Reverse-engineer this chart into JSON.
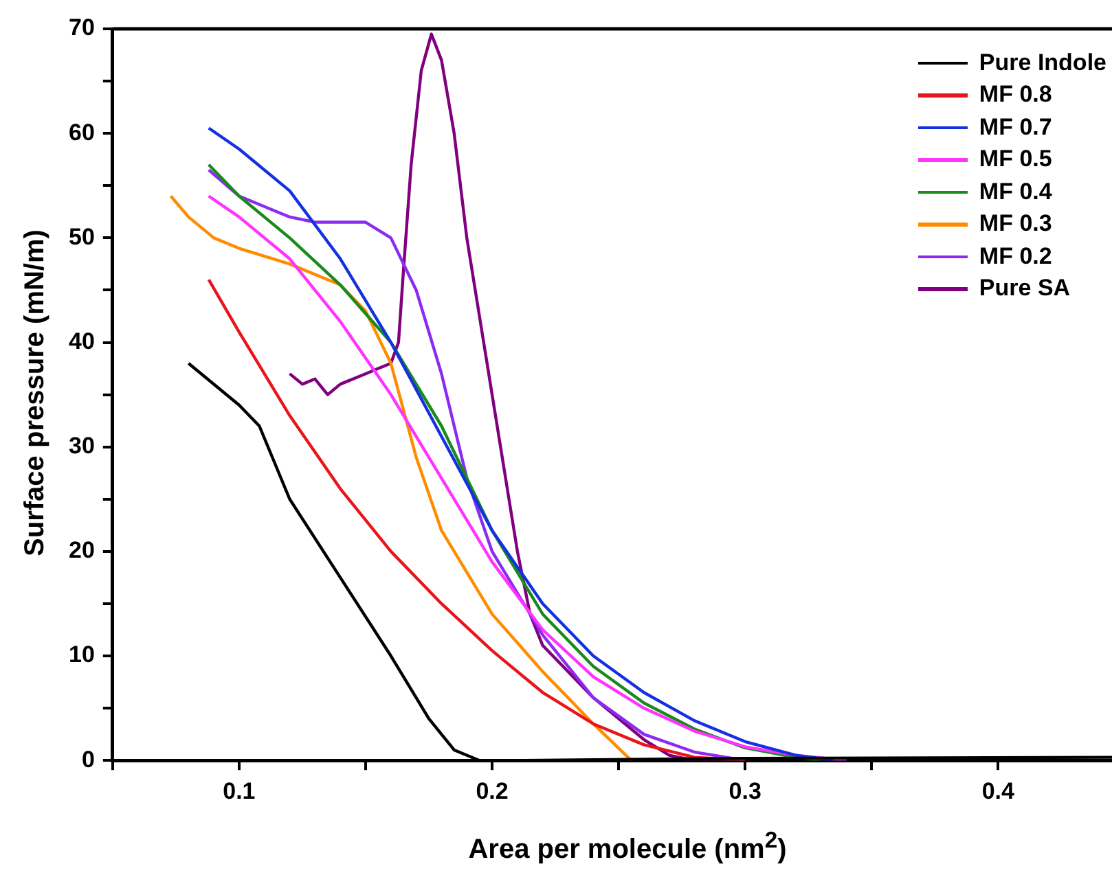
{
  "chart_data": {
    "type": "line",
    "xlabel": "Area per molecule (nm$^{2}$)",
    "ylabel": "Surface pressure (mN/m)",
    "xlim": [
      0.05,
      0.445
    ],
    "ylim": [
      0,
      70
    ],
    "xticks": [
      {
        "value": 0.05,
        "label": null
      },
      0.1,
      {
        "value": 0.15,
        "label": null
      },
      0.2,
      {
        "value": 0.25,
        "label": null
      },
      0.3,
      {
        "value": 0.35,
        "label": null
      },
      0.4
    ],
    "yticks": [
      0,
      {
        "value": 5,
        "label": null
      },
      10,
      {
        "value": 15,
        "label": null
      },
      20,
      {
        "value": 25,
        "label": null
      },
      30,
      {
        "value": 35,
        "label": null
      },
      40,
      {
        "value": 45,
        "label": null
      },
      50,
      {
        "value": 55,
        "label": null
      },
      60,
      {
        "value": 65,
        "label": null
      },
      70
    ],
    "grid": false,
    "legend": "top right",
    "marker": "none",
    "line_style": "solid",
    "series": [
      {
        "name": "Pure Indole",
        "color": "#000000",
        "x": [
          0.08,
          0.1,
          0.108,
          0.12,
          0.14,
          0.16,
          0.175,
          0.185,
          0.195,
          0.21,
          0.3,
          0.445
        ],
        "values": [
          38,
          34,
          32,
          25,
          17.5,
          10,
          4,
          1,
          0,
          0,
          0.2,
          0.3
        ]
      },
      {
        "name": "MF 0.8",
        "color": "#e8151b",
        "x": [
          0.088,
          0.1,
          0.12,
          0.14,
          0.16,
          0.18,
          0.2,
          0.22,
          0.24,
          0.26,
          0.28,
          0.3
        ],
        "values": [
          46,
          41,
          33,
          26,
          20,
          15,
          10.5,
          6.5,
          3.5,
          1.5,
          0.3,
          0
        ]
      },
      {
        "name": "MF 0.7",
        "color": "#1530e0",
        "x": [
          0.088,
          0.1,
          0.12,
          0.14,
          0.16,
          0.18,
          0.2,
          0.22,
          0.24,
          0.26,
          0.28,
          0.3,
          0.32,
          0.335
        ],
        "values": [
          60.5,
          58.5,
          54.5,
          48,
          40,
          31,
          22,
          15,
          10,
          6.5,
          3.8,
          1.8,
          0.5,
          0
        ]
      },
      {
        "name": "MF 0.5",
        "color": "#ff33ff",
        "x": [
          0.088,
          0.1,
          0.12,
          0.14,
          0.16,
          0.18,
          0.2,
          0.22,
          0.24,
          0.26,
          0.28,
          0.3,
          0.32,
          0.34
        ],
        "values": [
          54,
          52,
          48,
          42,
          35,
          27,
          19,
          12.5,
          8,
          5,
          2.8,
          1.3,
          0.5,
          0
        ]
      },
      {
        "name": "MF 0.4",
        "color": "#1a8a1a",
        "x": [
          0.088,
          0.1,
          0.12,
          0.14,
          0.16,
          0.18,
          0.2,
          0.22,
          0.24,
          0.26,
          0.28,
          0.3,
          0.32,
          0.33
        ],
        "values": [
          57,
          54,
          50,
          45.5,
          40,
          32,
          22,
          14,
          9,
          5.5,
          3,
          1.2,
          0.3,
          0
        ]
      },
      {
        "name": "MF 0.3",
        "color": "#ff8c00",
        "x": [
          0.073,
          0.08,
          0.09,
          0.1,
          0.12,
          0.14,
          0.15,
          0.16,
          0.17,
          0.18,
          0.2,
          0.22,
          0.24,
          0.255
        ],
        "values": [
          54,
          52,
          50,
          49,
          47.5,
          45.5,
          43,
          38,
          29,
          22,
          14,
          8.5,
          3.5,
          0
        ]
      },
      {
        "name": "MF 0.2",
        "color": "#8c2bf0",
        "x": [
          0.088,
          0.1,
          0.12,
          0.13,
          0.15,
          0.16,
          0.17,
          0.18,
          0.19,
          0.2,
          0.22,
          0.24,
          0.26,
          0.28,
          0.3
        ],
        "values": [
          56.5,
          54,
          52,
          51.5,
          51.5,
          50,
          45,
          37,
          27,
          20,
          12,
          6,
          2.5,
          0.8,
          0
        ]
      },
      {
        "name": "Pure SA",
        "color": "#800080",
        "x": [
          0.12,
          0.125,
          0.13,
          0.135,
          0.14,
          0.15,
          0.155,
          0.16,
          0.163,
          0.165,
          0.168,
          0.172,
          0.176,
          0.18,
          0.185,
          0.19,
          0.2,
          0.21,
          0.215,
          0.22,
          0.24,
          0.26,
          0.27,
          0.28,
          0.3
        ],
        "values": [
          37,
          36,
          36.5,
          35,
          36,
          37,
          37.5,
          38,
          40,
          47,
          57,
          66,
          69.5,
          67,
          60,
          50,
          35,
          20,
          14,
          11,
          6,
          2,
          0.5,
          0,
          0
        ]
      }
    ]
  }
}
